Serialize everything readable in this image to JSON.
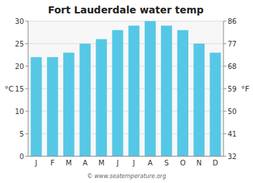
{
  "chart_data": {
    "type": "bar",
    "title": "Fort Lauderdale water temp",
    "categories": [
      "J",
      "F",
      "M",
      "A",
      "M",
      "J",
      "J",
      "A",
      "S",
      "O",
      "N",
      "D"
    ],
    "values": [
      22,
      22,
      23,
      25,
      26,
      28,
      29,
      30,
      29,
      28,
      25,
      23
    ],
    "color": "#56c8e6",
    "ylim": [
      0,
      30
    ],
    "yticks": [
      0,
      5,
      10,
      15,
      20,
      25,
      30
    ],
    "y2lim": [
      32,
      86
    ],
    "y2ticks": [
      32,
      41,
      50,
      59,
      68,
      77,
      86
    ],
    "ylabel": "°C",
    "y2label": "°F",
    "annotations": [
      "© www.seatemperature.org"
    ],
    "grid": true
  }
}
